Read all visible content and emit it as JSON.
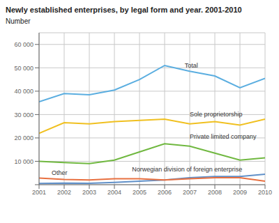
{
  "chart_data": {
    "type": "line",
    "title": "Newly established enterprises, by legal form and year. 2001-2010",
    "ylabel": "Number",
    "x": [
      2001,
      2002,
      2003,
      2004,
      2005,
      2006,
      2007,
      2008,
      2009,
      2010
    ],
    "series": [
      {
        "name": "Total",
        "color": "#5baee0",
        "values": [
          35500,
          39000,
          38500,
          40500,
          45000,
          51000,
          48500,
          46500,
          41500,
          45500
        ]
      },
      {
        "name": "Sole proprietorship",
        "color": "#f0c020",
        "values": [
          22000,
          26500,
          26000,
          27000,
          27500,
          28000,
          26000,
          27000,
          25500,
          28000
        ]
      },
      {
        "name": "Private limited company",
        "color": "#70b840",
        "values": [
          10000,
          9500,
          9000,
          10500,
          14000,
          17500,
          16500,
          13500,
          10500,
          11500
        ]
      },
      {
        "name": "Norwegian division of foreign enterprise",
        "color": "#6090c8",
        "values": [
          500,
          700,
          600,
          1000,
          1500,
          2000,
          3000,
          3500,
          3500,
          4500
        ]
      },
      {
        "name": "Other",
        "color": "#e87040",
        "values": [
          2800,
          2200,
          2000,
          2500,
          2500,
          2000,
          2500,
          3000,
          3000,
          1500
        ]
      }
    ],
    "annotations": [
      {
        "text": "Total",
        "x": 2006.8,
        "y": 49500
      },
      {
        "text": "Sole proprietorship",
        "x": 2007.0,
        "y": 28500
      },
      {
        "text": "Private limited company",
        "x": 2007.0,
        "y": 19200
      },
      {
        "text": "Norwegian division of foreign enterprise",
        "x": 2004.7,
        "y": 5200
      },
      {
        "text": "Other",
        "x": 2001.5,
        "y": 3600
      }
    ],
    "xlim": [
      2001,
      2010
    ],
    "xticks": [
      2001,
      2002,
      2003,
      2004,
      2005,
      2006,
      2007,
      2008,
      2009,
      2010
    ],
    "ylim": [
      0,
      65000
    ],
    "yticks": [
      {
        "value": 0,
        "label": null
      },
      {
        "value": 10000,
        "label": "10 000"
      },
      {
        "value": 20000,
        "label": "20 000"
      },
      {
        "value": 30000,
        "label": "30 000"
      },
      {
        "value": 40000,
        "label": "40 000"
      },
      {
        "value": 50000,
        "label": "50 000"
      },
      {
        "value": 60000,
        "label": "60 000"
      }
    ],
    "grid": true
  }
}
